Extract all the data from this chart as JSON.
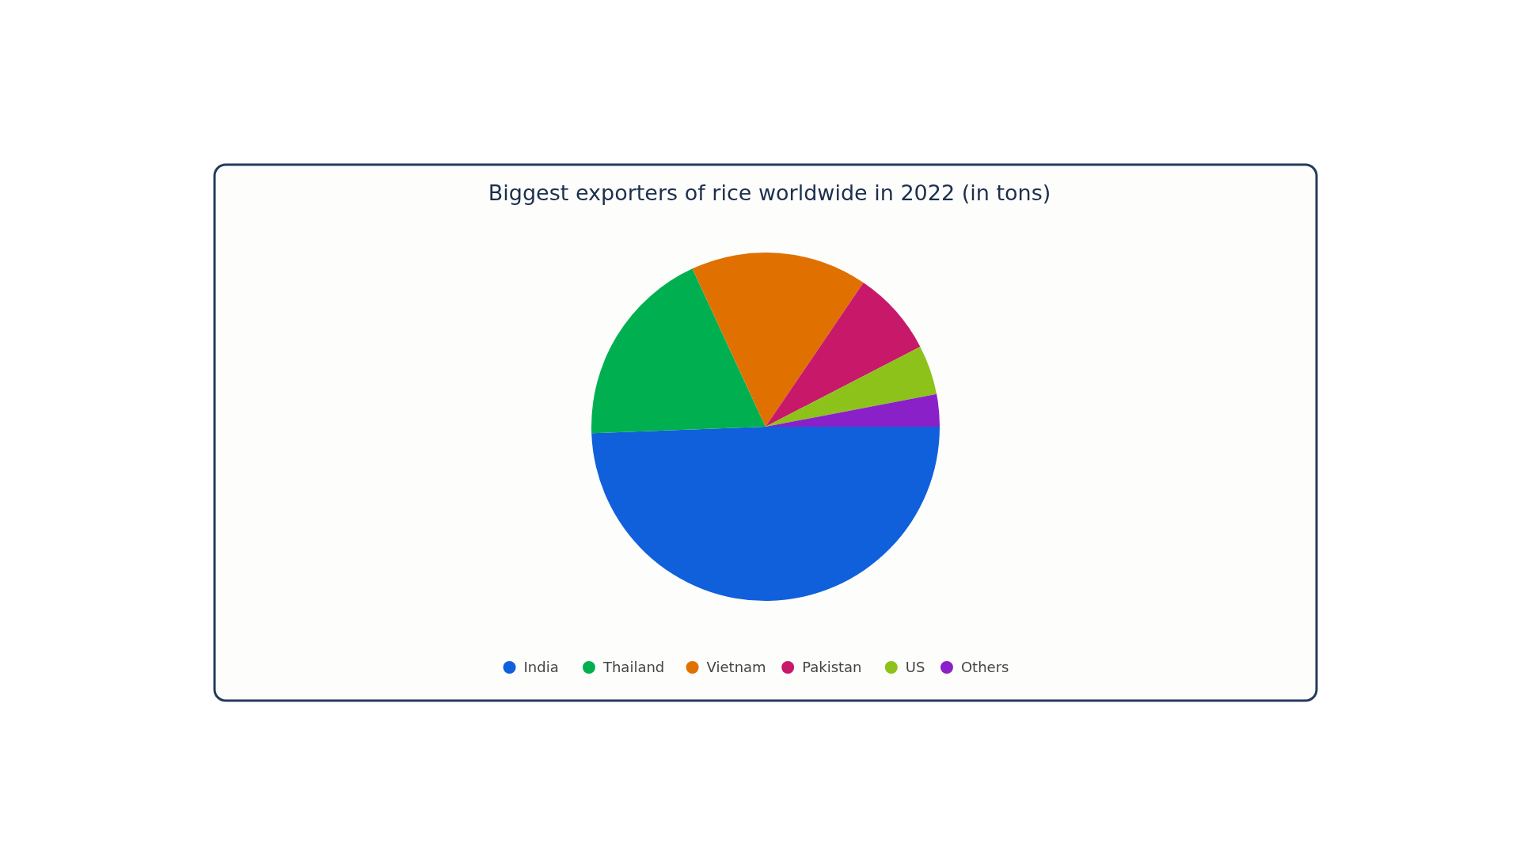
{
  "chart_data": {
    "type": "pie",
    "title": "Biggest exporters of rice worldwide in 2022 (in tons)",
    "categories": [
      "India",
      "Thailand",
      "Vietnam",
      "Pakistan",
      "US",
      "Others"
    ],
    "values": [
      49.4,
      18.7,
      16.4,
      7.9,
      4.6,
      3.0
    ],
    "colors": [
      "#1060dc",
      "#00b050",
      "#e07000",
      "#c8186a",
      "#8cc21a",
      "#8a20c8"
    ],
    "legend": "bottom"
  }
}
